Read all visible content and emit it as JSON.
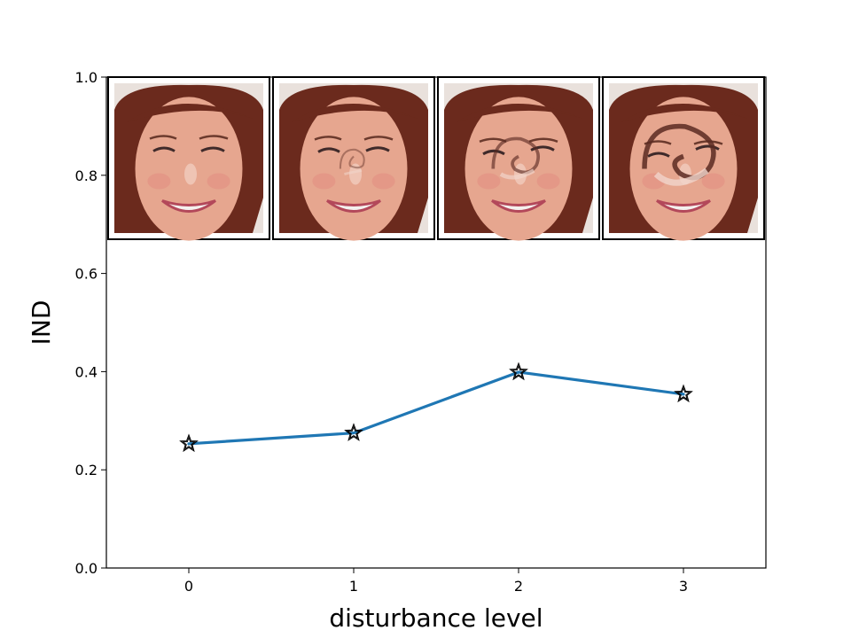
{
  "chart_data": {
    "type": "line",
    "title": "",
    "xlabel": "disturbance level",
    "ylabel": "IND",
    "xlim": [
      -0.5,
      3.5
    ],
    "ylim": [
      0.0,
      1.0
    ],
    "x_ticks": [
      0,
      1,
      2,
      3
    ],
    "x_tick_labels": [
      "0",
      "1",
      "2",
      "3"
    ],
    "y_ticks": [
      0.0,
      0.2,
      0.4,
      0.6,
      0.8,
      1.0
    ],
    "y_tick_labels": [
      "0.0",
      "0.2",
      "0.4",
      "0.6",
      "0.8",
      "1.0"
    ],
    "grid": false,
    "series": [
      {
        "x": [
          0,
          1,
          2,
          3
        ],
        "values": [
          0.253,
          0.275,
          0.399,
          0.354
        ],
        "color": "#1f77b4",
        "marker": "star"
      }
    ],
    "face_thumbnails": [
      {
        "level": 0,
        "distortion": 0.0
      },
      {
        "level": 1,
        "distortion": 0.15
      },
      {
        "level": 2,
        "distortion": 0.55
      },
      {
        "level": 3,
        "distortion": 1.0
      }
    ]
  }
}
